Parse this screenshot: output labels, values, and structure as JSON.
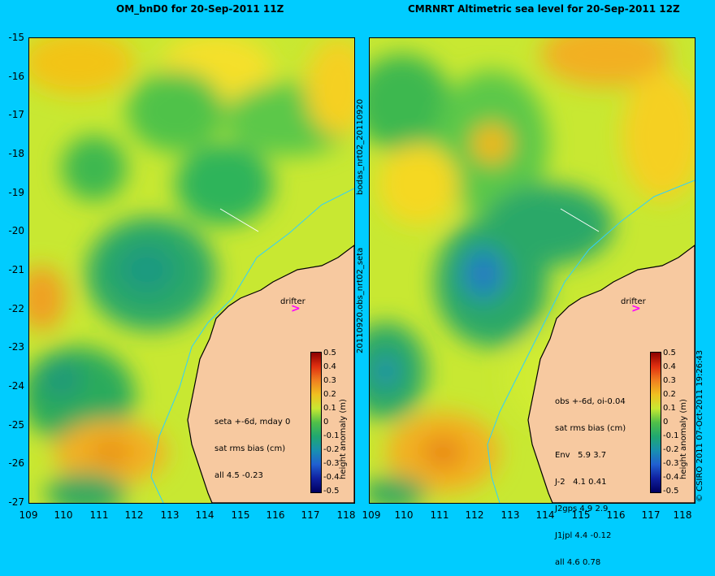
{
  "left_panel": {
    "title": "OM_bnD0 for 20-Sep-2011 11Z",
    "side_label": "bodas_nrt02_20110920",
    "stats": [
      "seta +-6d, mday 0",
      "sat rms bias (cm)",
      "all 4.5 -0.23"
    ],
    "drifter_label": "drifter"
  },
  "right_panel": {
    "title": "CMRNRT Altimetric sea level  for 20-Sep-2011 12Z",
    "side_label": "20110920.obs_nrt02_seta",
    "stats": [
      "obs +-6d, oi-0.04",
      "sat rms bias (cm)",
      "Env   5.9 3.7",
      "J-2   4.1 0.41",
      "J2gps 4.9 2.9",
      "J1jpl 4.4 -0.12",
      "all 4.6 0.78"
    ],
    "drifter_label": "drifter"
  },
  "axes": {
    "y_ticks": [
      "-15",
      "-16",
      "-17",
      "-18",
      "-19",
      "-20",
      "-21",
      "-22",
      "-23",
      "-24",
      "-25",
      "-26",
      "-27"
    ],
    "x_ticks": [
      "109",
      "110",
      "111",
      "112",
      "113",
      "114",
      "115",
      "116",
      "117",
      "118"
    ]
  },
  "colorbar": {
    "label": "height anomaly (m)",
    "ticks": [
      "0.5",
      "0.4",
      "0.3",
      "0.2",
      "0.1",
      "0",
      "-0.1",
      "-0.2",
      "-0.3",
      "-0.4",
      "-0.5"
    ]
  },
  "credit": "© CSIRO 2011  07-Oct-2011 19:26:43",
  "colors": {
    "background": "#00ccff",
    "land": "#f7c9a0",
    "drifter_arrow": "#ff00ff",
    "coast_current": "#30d0ff"
  }
}
